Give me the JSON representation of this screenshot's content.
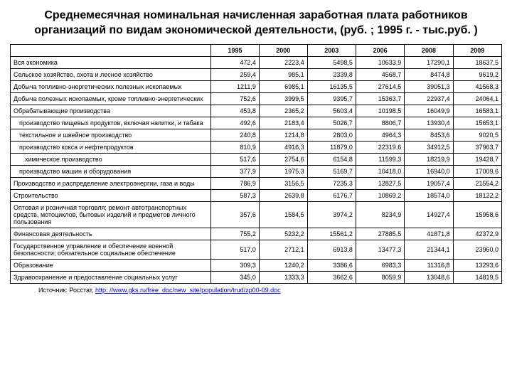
{
  "title": "Среднемесячная номинальная начисленная заработная плата работников организаций по видам экономической деятельности, (руб. ; 1995 г. - тыс.руб. )",
  "columns": [
    "1995",
    "2000",
    "2003",
    "2006",
    "2008",
    "2009"
  ],
  "rows": [
    {
      "label": "Вся экономика",
      "indent": 0,
      "v": [
        "472,4",
        "2223,4",
        "5498,5",
        "10633,9",
        "17290,1",
        "18637,5"
      ]
    },
    {
      "label": "Сельское хозяйство, охота и лесное хозяйство",
      "indent": 0,
      "v": [
        "259,4",
        "985,1",
        "2339,8",
        "4568,7",
        "8474,8",
        "9619,2"
      ]
    },
    {
      "label": "Добыча топливно-энергетических полезных ископаемых",
      "indent": 0,
      "v": [
        "1211,9",
        "6985,1",
        "16135,5",
        "27614,5",
        "39051,3",
        "41568,3"
      ]
    },
    {
      "label": "Добыча полезных ископаемых, кроме топливно-энергетических",
      "indent": 0,
      "v": [
        "752,6",
        "3999,5",
        "9395,7",
        "15363,7",
        "22937,4",
        "24064,1"
      ]
    },
    {
      "label": "Обрабатывающие производства",
      "indent": 0,
      "v": [
        "453,8",
        "2365,2",
        "5603,4",
        "10198,5",
        "16049,9",
        "16583,1"
      ]
    },
    {
      "label": "производство пищевых продуктов, включая напитки, и табака",
      "indent": 1,
      "v": [
        "492,6",
        "2183,4",
        "5026,7",
        "8806,7",
        "13930,4",
        "15653,1"
      ]
    },
    {
      "label": "текстильное и швейное производство",
      "indent": 1,
      "v": [
        "240,8",
        "1214,8",
        "2803,0",
        "4964,3",
        "8453,6",
        "9020,5"
      ]
    },
    {
      "label": "производство кокса и нефтепродуктов",
      "indent": 1,
      "v": [
        "810,9",
        "4916,3",
        "11879,0",
        "22319,6",
        "34912,5",
        "37963,7"
      ]
    },
    {
      "label": "химическое производство",
      "indent": 2,
      "v": [
        "517,6",
        "2754,6",
        "6154,8",
        "11599,3",
        "18219,9",
        "19428,7"
      ]
    },
    {
      "label": "производство машин и оборудования",
      "indent": 1,
      "v": [
        "377,9",
        "1975,3",
        "5169,7",
        "10418,0",
        "16940,0",
        "17009,6"
      ]
    },
    {
      "label": "Производство и распределение электроэнергии, газа и воды",
      "indent": 0,
      "v": [
        "786,9",
        "3156,5",
        "7235,3",
        "12827,5",
        "19057,4",
        "21554,2"
      ]
    },
    {
      "label": "Строительство",
      "indent": 0,
      "v": [
        "587,3",
        "2639,8",
        "6176,7",
        "10869,2",
        "18574,0",
        "18122,2"
      ]
    },
    {
      "label": "Оптовая и розничная торговля; ремонт автотранспортных средств, мотоциклов, бытовых изделий и предметов личного пользования",
      "indent": 0,
      "v": [
        "357,6",
        "1584,5",
        "3974,2",
        "8234,9",
        "14927,4",
        "15958,6"
      ]
    },
    {
      "label": "Финансовая деятельность",
      "indent": 0,
      "v": [
        "755,2",
        "5232,2",
        "15561,2",
        "27885,5",
        "41871,8",
        "42372,9"
      ]
    },
    {
      "label": "Государственное управление и обеспечение военной безопасности; обязательное социальное обеспечение",
      "indent": 0,
      "v": [
        "517,0",
        "2712,1",
        "6913,8",
        "13477,3",
        "21344,1",
        "23960,0"
      ]
    },
    {
      "label": "Образование",
      "indent": 0,
      "v": [
        "309,3",
        "1240,2",
        "3386,6",
        "6983,3",
        "11316,8",
        "13293,6"
      ]
    },
    {
      "label": "Здравоохранение и предоставление социальных услуг",
      "indent": 0,
      "v": [
        "345,0",
        "1333,3",
        "3662,6",
        "8059,9",
        "13048,6",
        "14819,5"
      ]
    }
  ],
  "source_label": "Источник: Росстат, ",
  "source_url": "http: //www.gks.ru/free_doc/new_site/population/trud/zp00-09.doc"
}
